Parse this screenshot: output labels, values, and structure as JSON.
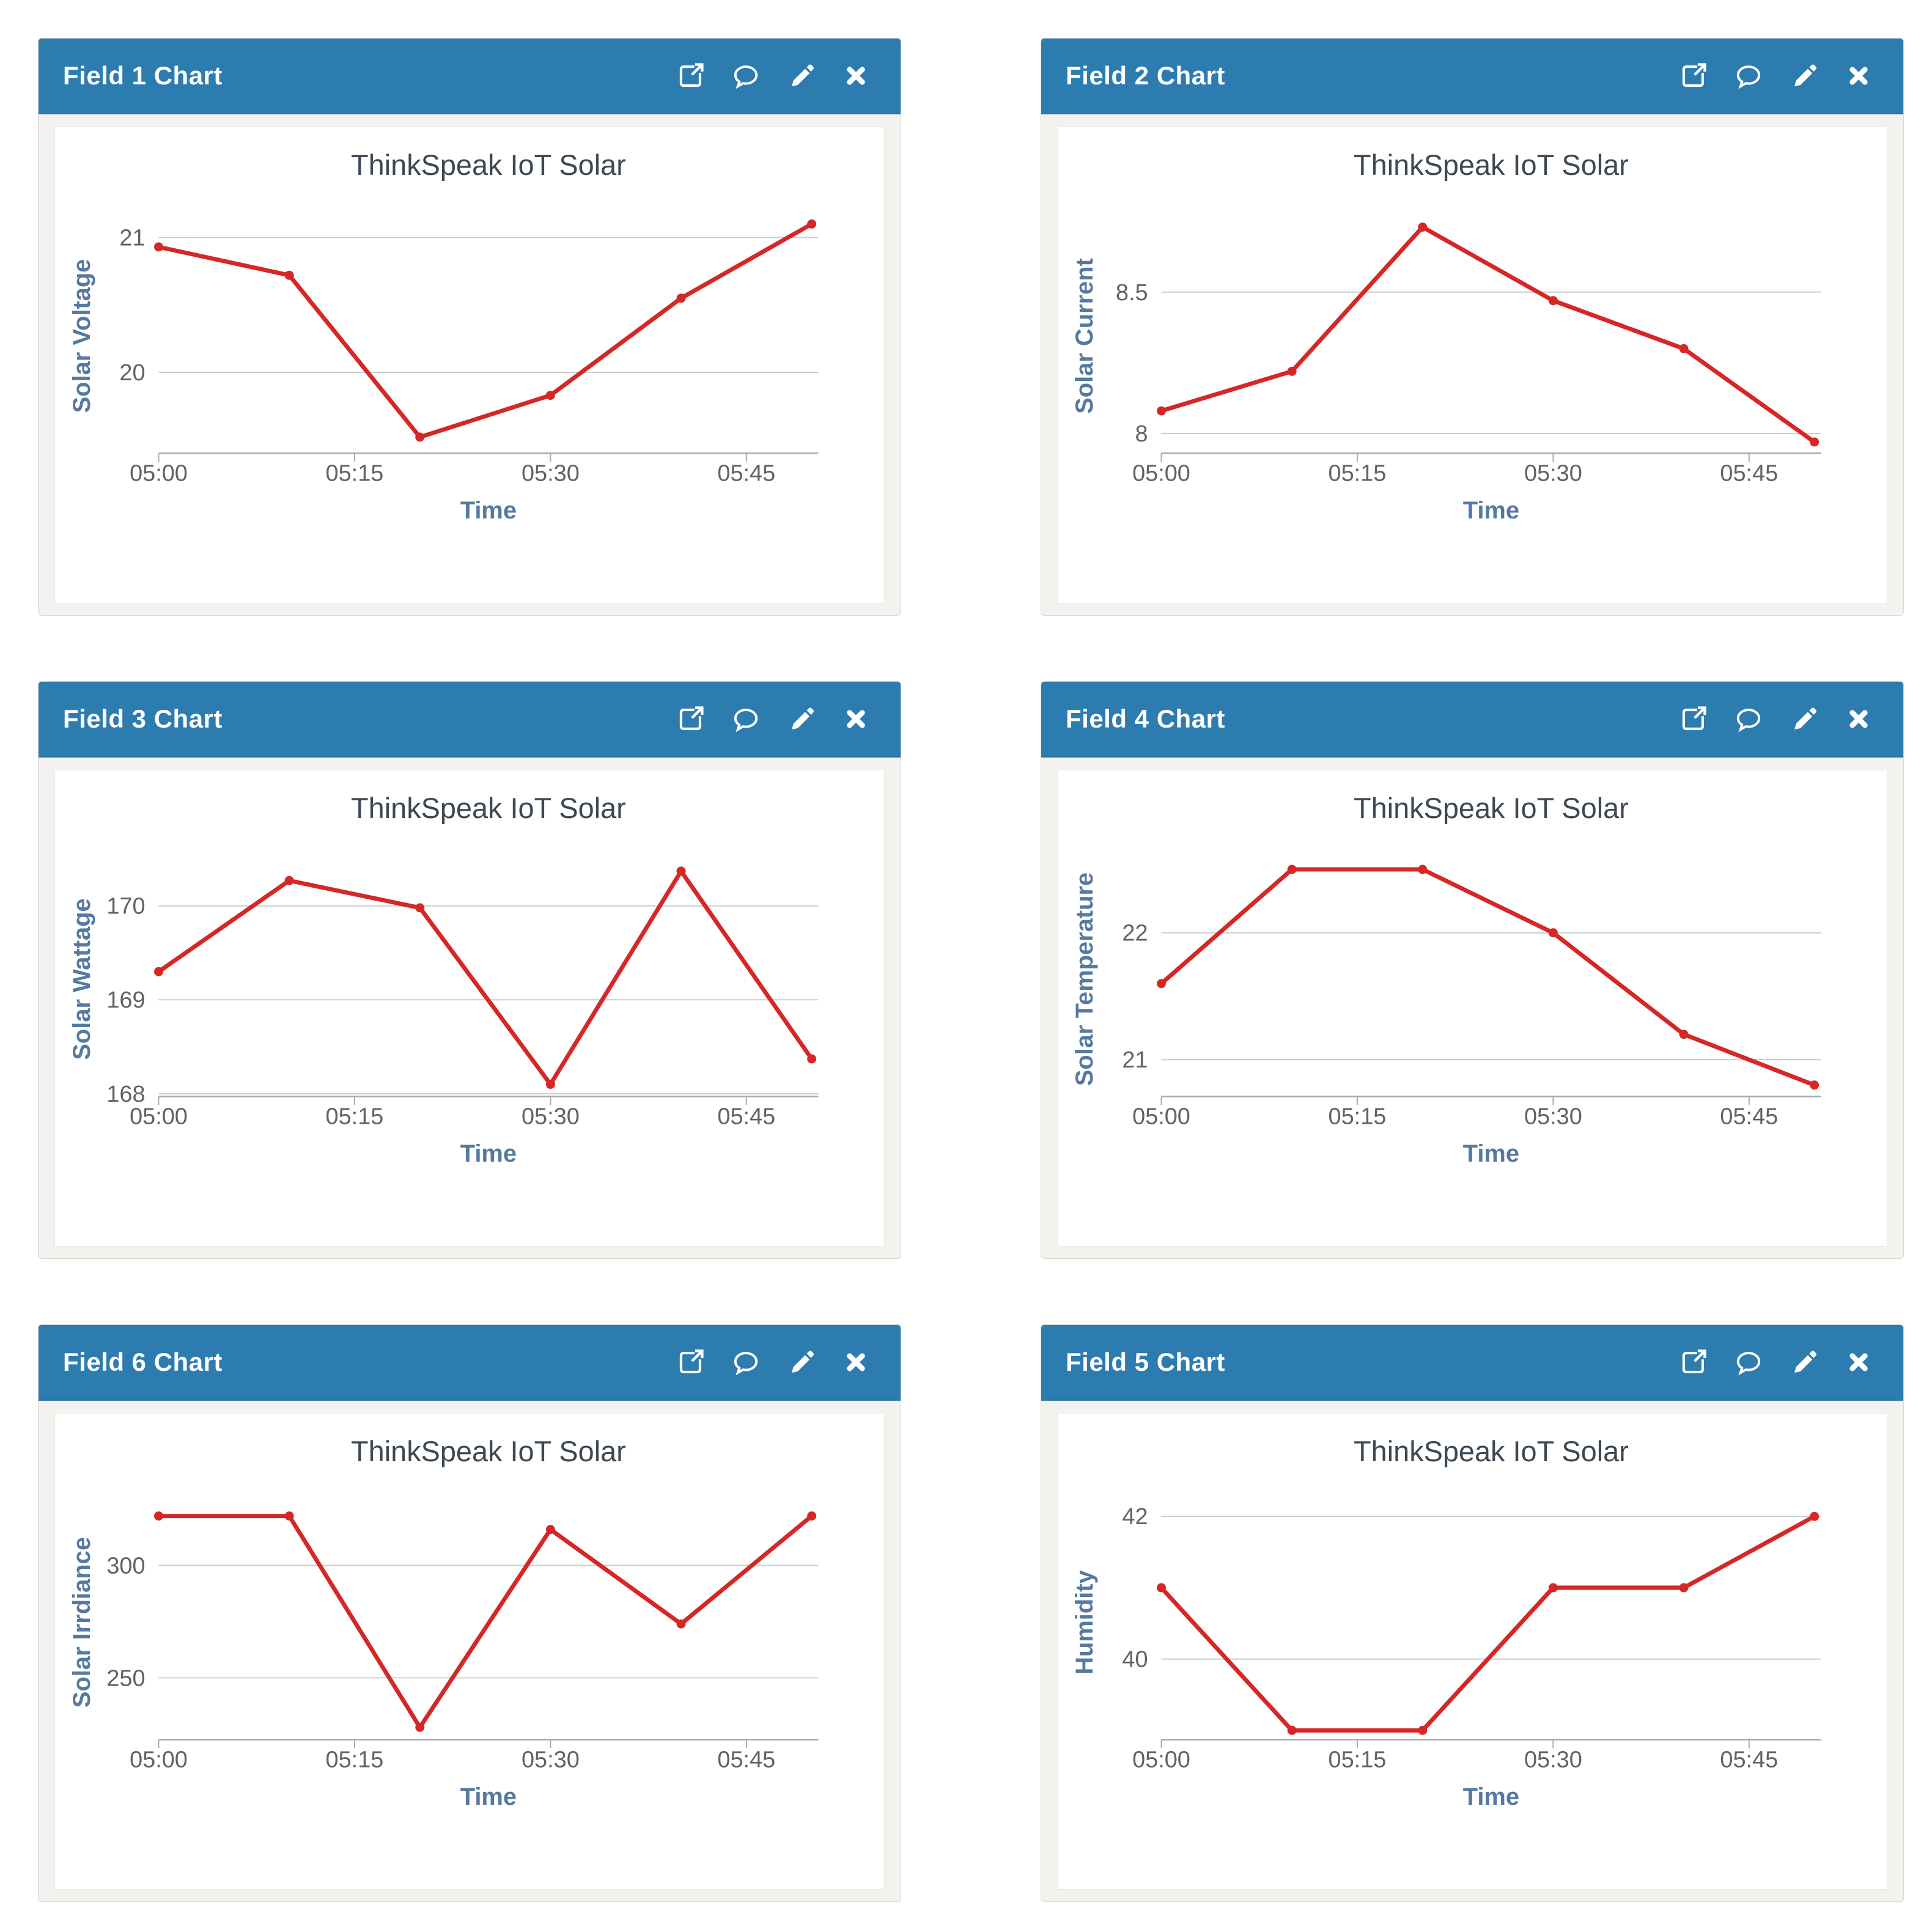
{
  "page": {
    "background": "#ffffff"
  },
  "colors": {
    "header_bg": "#2d7cb0",
    "header_border": "#2a6f9e",
    "header_text": "#ffffff",
    "panel_body_bg": "#f4f2ef",
    "panel_border": "#d9d7d4",
    "chart_bg": "#ffffff",
    "line": "#d62727",
    "grid": "#c9cdce",
    "axis": "#a5acac",
    "title_text": "#3d4852",
    "axis_label_text": "#56799f",
    "tick_text": "#606365"
  },
  "icons": {
    "external-link-icon": "↗",
    "comment-icon": "💬",
    "pencil-icon": "✎",
    "close-icon": "✕"
  },
  "panels": [
    {
      "title": "Field 1 Chart",
      "chart_index": 0
    },
    {
      "title": "Field 2 Chart",
      "chart_index": 1
    },
    {
      "title": "Field 3 Chart",
      "chart_index": 2
    },
    {
      "title": "Field 4 Chart",
      "chart_index": 3
    },
    {
      "title": "Field 6 Chart",
      "chart_index": 4
    },
    {
      "title": "Field 5 Chart",
      "chart_index": 5
    }
  ],
  "chart_data": [
    {
      "type": "line",
      "title": "ThinkSpeak IoT Solar",
      "xlabel": "Time",
      "ylabel": "Solar Voltage",
      "categories": [
        "05:00",
        "05:10",
        "05:20",
        "05:30",
        "05:40",
        "05:50"
      ],
      "x_minutes": [
        0,
        10,
        20,
        30,
        40,
        50
      ],
      "values": [
        20.93,
        20.72,
        19.52,
        19.83,
        20.55,
        21.1
      ],
      "xtick_minutes": [
        0,
        15,
        30,
        45
      ],
      "xtick_labels": [
        "05:00",
        "05:15",
        "05:30",
        "05:45"
      ],
      "xlim_minutes": [
        0,
        50.5
      ],
      "ytick_values": [
        20,
        21
      ],
      "ytick_labels": [
        "20",
        "21"
      ],
      "ylim": [
        19.4,
        21.14
      ],
      "grid": true,
      "legend": "none"
    },
    {
      "type": "line",
      "title": "ThinkSpeak IoT Solar",
      "xlabel": "Time",
      "ylabel": "Solar Current",
      "categories": [
        "05:00",
        "05:10",
        "05:20",
        "05:30",
        "05:40",
        "05:50"
      ],
      "x_minutes": [
        0,
        10,
        20,
        30,
        40,
        50
      ],
      "values": [
        8.08,
        8.22,
        8.73,
        8.47,
        8.3,
        7.97
      ],
      "xtick_minutes": [
        0,
        15,
        30,
        45
      ],
      "xtick_labels": [
        "05:00",
        "05:15",
        "05:30",
        "05:45"
      ],
      "xlim_minutes": [
        0,
        50.5
      ],
      "ytick_values": [
        8,
        8.5
      ],
      "ytick_labels": [
        "8",
        "8.5"
      ],
      "ylim": [
        7.93,
        8.76
      ],
      "grid": true,
      "legend": "none"
    },
    {
      "type": "line",
      "title": "ThinkSpeak IoT Solar",
      "xlabel": "Time",
      "ylabel": "Solar Wattage",
      "categories": [
        "05:00",
        "05:10",
        "05:20",
        "05:30",
        "05:40",
        "05:50"
      ],
      "x_minutes": [
        0,
        10,
        20,
        30,
        40,
        50
      ],
      "values": [
        169.3,
        170.27,
        169.98,
        168.1,
        170.37,
        168.37
      ],
      "xtick_minutes": [
        0,
        15,
        30,
        45
      ],
      "xtick_labels": [
        "05:00",
        "05:15",
        "05:30",
        "05:45"
      ],
      "xlim_minutes": [
        0,
        50.5
      ],
      "ytick_values": [
        168,
        169,
        170
      ],
      "ytick_labels": [
        "168",
        "169",
        "170"
      ],
      "ylim": [
        167.97,
        170.47
      ],
      "grid": true,
      "legend": "none"
    },
    {
      "type": "line",
      "title": "ThinkSpeak IoT Solar",
      "xlabel": "Time",
      "ylabel": "Solar Temperature",
      "categories": [
        "05:00",
        "05:10",
        "05:20",
        "05:30",
        "05:40",
        "05:50"
      ],
      "x_minutes": [
        0,
        10,
        20,
        30,
        40,
        50
      ],
      "values": [
        21.6,
        22.5,
        22.5,
        22.0,
        21.2,
        20.8
      ],
      "xtick_minutes": [
        0,
        15,
        30,
        45
      ],
      "xtick_labels": [
        "05:00",
        "05:15",
        "05:30",
        "05:45"
      ],
      "xlim_minutes": [
        0,
        50.5
      ],
      "ytick_values": [
        21,
        22
      ],
      "ytick_labels": [
        "21",
        "22"
      ],
      "ylim": [
        20.71,
        22.56
      ],
      "grid": true,
      "legend": "none"
    },
    {
      "type": "line",
      "title": "ThinkSpeak IoT Solar",
      "xlabel": "Time",
      "ylabel": "Solar Irrdiance",
      "categories": [
        "05:00",
        "05:10",
        "05:20",
        "05:30",
        "05:40",
        "05:50"
      ],
      "x_minutes": [
        0,
        10,
        20,
        30,
        40,
        50
      ],
      "values": [
        322,
        322,
        228,
        316,
        274,
        322
      ],
      "xtick_minutes": [
        0,
        15,
        30,
        45
      ],
      "xtick_labels": [
        "05:00",
        "05:15",
        "05:30",
        "05:45"
      ],
      "xlim_minutes": [
        0,
        50.5
      ],
      "ytick_values": [
        250,
        300
      ],
      "ytick_labels": [
        "250",
        "300"
      ],
      "ylim": [
        222.5,
        326.9
      ],
      "grid": true,
      "legend": "none"
    },
    {
      "type": "line",
      "title": "ThinkSpeak IoT Solar",
      "xlabel": "Time",
      "ylabel": "Humidity",
      "categories": [
        "05:00",
        "05:10",
        "05:20",
        "05:30",
        "05:40",
        "05:50"
      ],
      "x_minutes": [
        0,
        10,
        20,
        30,
        40,
        50
      ],
      "values": [
        41,
        39,
        39,
        41,
        41,
        42
      ],
      "xtick_minutes": [
        0,
        15,
        30,
        45
      ],
      "xtick_labels": [
        "05:00",
        "05:15",
        "05:30",
        "05:45"
      ],
      "xlim_minutes": [
        0,
        50.5
      ],
      "ytick_values": [
        40,
        42
      ],
      "ytick_labels": [
        "40",
        "42"
      ],
      "ylim": [
        38.87,
        42.16
      ],
      "grid": true,
      "legend": "none"
    }
  ]
}
